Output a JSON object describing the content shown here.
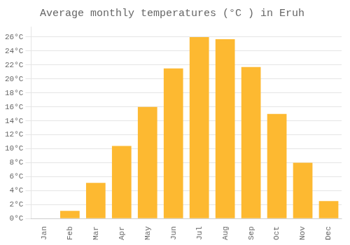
{
  "chart_data": {
    "type": "bar",
    "title": "Average monthly temperatures (°C ) in Eruh",
    "categories": [
      "Jan",
      "Feb",
      "Mar",
      "Apr",
      "May",
      "Jun",
      "Jul",
      "Aug",
      "Sep",
      "Oct",
      "Nov",
      "Dec"
    ],
    "values": [
      0.0,
      1.1,
      5.1,
      10.4,
      16.0,
      21.5,
      26.0,
      25.7,
      21.7,
      15.0,
      8.0,
      2.5
    ],
    "color": "#FDB931",
    "ylim": [
      0,
      27.5
    ],
    "yticks": [
      {
        "value": 0,
        "label": "0°C"
      },
      {
        "value": 2,
        "label": "2°C"
      },
      {
        "value": 4,
        "label": "4°C"
      },
      {
        "value": 6,
        "label": "6°C"
      },
      {
        "value": 8,
        "label": "8°C"
      },
      {
        "value": 10,
        "label": "10°C"
      },
      {
        "value": 12,
        "label": "12°C"
      },
      {
        "value": 14,
        "label": "14°C"
      },
      {
        "value": 16,
        "label": "16°C"
      },
      {
        "value": 18,
        "label": "18°C"
      },
      {
        "value": 20,
        "label": "20°C"
      },
      {
        "value": 22,
        "label": "22°C"
      },
      {
        "value": 24,
        "label": "24°C"
      },
      {
        "value": 26,
        "label": "26°C"
      }
    ],
    "grid": true
  }
}
